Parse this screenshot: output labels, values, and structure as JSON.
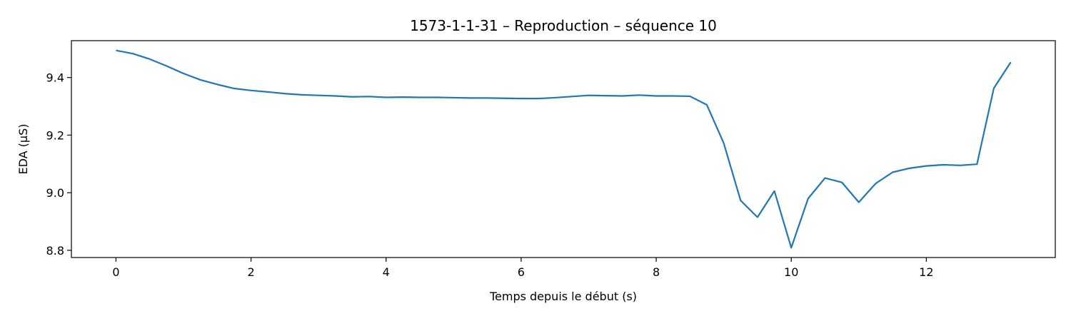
{
  "chart_data": {
    "type": "line",
    "title": "1573-1-1-31 – Reproduction – séquence 10",
    "xlabel": "Temps depuis le début (s)",
    "ylabel": "EDA (µS)",
    "xlim": [
      -0.66,
      13.91
    ],
    "ylim": [
      8.775,
      9.528
    ],
    "xticks": [
      0,
      2,
      4,
      6,
      8,
      10,
      12
    ],
    "xtick_labels": [
      "0",
      "2",
      "4",
      "6",
      "8",
      "10",
      "12"
    ],
    "yticks": [
      8.8,
      9.0,
      9.2,
      9.4
    ],
    "ytick_labels": [
      "8.8",
      "9.0",
      "9.2",
      "9.4"
    ],
    "grid": false,
    "series": [
      {
        "color": "#1f77b4",
        "x": [
          0,
          0.25,
          0.5,
          0.75,
          1.0,
          1.25,
          1.5,
          1.75,
          2.0,
          2.25,
          2.5,
          2.75,
          3.0,
          3.25,
          3.5,
          3.75,
          4.0,
          4.25,
          4.5,
          4.75,
          5.0,
          5.25,
          5.5,
          5.75,
          6.0,
          6.25,
          6.5,
          6.75,
          7.0,
          7.25,
          7.5,
          7.75,
          8.0,
          8.25,
          8.5,
          8.75,
          9.0,
          9.25,
          9.5,
          9.75,
          10.0,
          10.25,
          10.5,
          10.75,
          11.0,
          11.25,
          11.5,
          11.75,
          12.0,
          12.25,
          12.5,
          12.75,
          13.0,
          13.25
        ],
        "y": [
          9.494,
          9.483,
          9.464,
          9.44,
          9.414,
          9.392,
          9.376,
          9.362,
          9.355,
          9.35,
          9.344,
          9.34,
          9.338,
          9.336,
          9.333,
          9.334,
          9.331,
          9.332,
          9.331,
          9.331,
          9.33,
          9.329,
          9.329,
          9.328,
          9.327,
          9.327,
          9.33,
          9.334,
          9.338,
          9.337,
          9.336,
          9.339,
          9.336,
          9.336,
          9.335,
          9.305,
          9.172,
          8.973,
          8.915,
          9.006,
          8.809,
          8.98,
          9.051,
          9.036,
          8.967,
          9.032,
          9.071,
          9.085,
          9.093,
          9.097,
          9.095,
          9.099,
          9.363,
          9.453
        ]
      }
    ]
  }
}
